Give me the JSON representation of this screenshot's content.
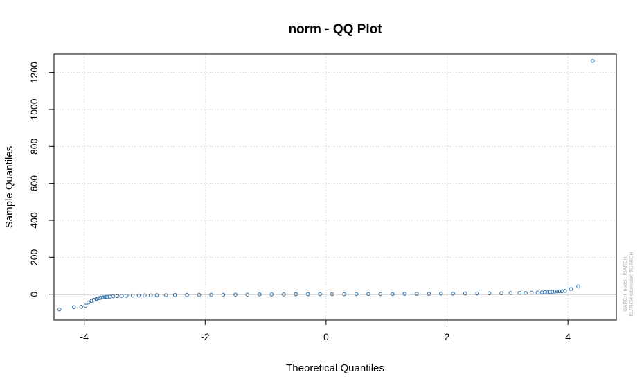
{
  "chart_data": {
    "type": "scatter",
    "title": "norm - QQ Plot",
    "xlabel": "Theoretical Quantiles",
    "ylabel": "Sample Quantiles",
    "xlim": [
      -4.5,
      4.8
    ],
    "ylim": [
      -140,
      1300
    ],
    "xticks": [
      -4,
      -2,
      0,
      2,
      4
    ],
    "yticks": [
      0,
      200,
      400,
      600,
      800,
      1000,
      1200
    ],
    "grid": true,
    "reference_line_y": 0,
    "point_color": "#2f6fa8",
    "watermark": [
      "GARCH model : fGARCH",
      "fGARCH submodel: TGARCH"
    ],
    "points": [
      [
        -4.41,
        -82
      ],
      [
        -4.17,
        -70
      ],
      [
        -4.05,
        -68
      ],
      [
        -3.98,
        -62
      ],
      [
        -3.93,
        -45
      ],
      [
        -3.88,
        -36
      ],
      [
        -3.84,
        -30
      ],
      [
        -3.8,
        -25
      ],
      [
        -3.77,
        -22
      ],
      [
        -3.74,
        -20
      ],
      [
        -3.71,
        -18
      ],
      [
        -3.68,
        -17
      ],
      [
        -3.65,
        -15
      ],
      [
        -3.62,
        -14
      ],
      [
        -3.58,
        -13
      ],
      [
        -3.52,
        -11
      ],
      [
        -3.45,
        -10
      ],
      [
        -3.38,
        -9
      ],
      [
        -3.3,
        -8
      ],
      [
        -3.2,
        -7
      ],
      [
        -3.1,
        -7
      ],
      [
        -3.0,
        -6
      ],
      [
        -2.9,
        -6
      ],
      [
        -2.8,
        -5
      ],
      [
        -2.65,
        -5
      ],
      [
        -2.5,
        -4
      ],
      [
        -2.3,
        -4
      ],
      [
        -2.1,
        -3
      ],
      [
        -1.9,
        -3
      ],
      [
        -1.7,
        -3
      ],
      [
        -1.5,
        -2
      ],
      [
        -1.3,
        -2
      ],
      [
        -1.1,
        -1
      ],
      [
        -0.9,
        -1
      ],
      [
        -0.7,
        -1
      ],
      [
        -0.5,
        0
      ],
      [
        -0.3,
        0
      ],
      [
        -0.1,
        0
      ],
      [
        0.1,
        0
      ],
      [
        0.3,
        0
      ],
      [
        0.5,
        1
      ],
      [
        0.7,
        1
      ],
      [
        0.9,
        1
      ],
      [
        1.1,
        1
      ],
      [
        1.3,
        2
      ],
      [
        1.5,
        2
      ],
      [
        1.7,
        2
      ],
      [
        1.9,
        3
      ],
      [
        2.1,
        3
      ],
      [
        2.3,
        4
      ],
      [
        2.5,
        4
      ],
      [
        2.7,
        5
      ],
      [
        2.9,
        5
      ],
      [
        3.05,
        6
      ],
      [
        3.2,
        7
      ],
      [
        3.3,
        7
      ],
      [
        3.4,
        8
      ],
      [
        3.5,
        9
      ],
      [
        3.57,
        10
      ],
      [
        3.62,
        11
      ],
      [
        3.66,
        11
      ],
      [
        3.7,
        12
      ],
      [
        3.74,
        13
      ],
      [
        3.78,
        14
      ],
      [
        3.82,
        15
      ],
      [
        3.86,
        16
      ],
      [
        3.9,
        16
      ],
      [
        3.95,
        18
      ],
      [
        4.05,
        28
      ],
      [
        4.17,
        42
      ],
      [
        4.41,
        1263
      ]
    ]
  }
}
